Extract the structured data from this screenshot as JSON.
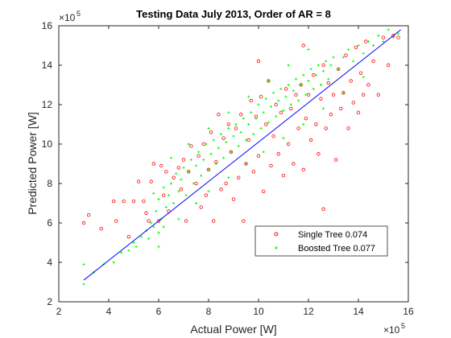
{
  "chart_data": {
    "type": "scatter",
    "title": "Testing Data July 2013, Order of AR = 8",
    "xlabel": "Actual Power [W]",
    "ylabel": "Predicted Power [W]",
    "exponent_label_base": "×10",
    "exponent": "5",
    "xlim": [
      2,
      16
    ],
    "ylim": [
      2,
      16
    ],
    "xticks": [
      "2",
      "4",
      "6",
      "8",
      "10",
      "12",
      "14",
      "16"
    ],
    "yticks": [
      "2",
      "4",
      "6",
      "8",
      "10",
      "12",
      "14",
      "16"
    ],
    "legend_position": "lower-right",
    "series": [
      {
        "name": "Single Tree 0.074",
        "marker": "circle",
        "color": "#ff0000",
        "points": [
          [
            3.0,
            6.0
          ],
          [
            3.2,
            6.4
          ],
          [
            3.7,
            5.7
          ],
          [
            4.2,
            7.1
          ],
          [
            4.3,
            6.1
          ],
          [
            4.6,
            7.1
          ],
          [
            4.8,
            5.3
          ],
          [
            5.0,
            7.1
          ],
          [
            5.2,
            8.1
          ],
          [
            5.4,
            7.1
          ],
          [
            5.5,
            6.5
          ],
          [
            5.6,
            6.1
          ],
          [
            5.7,
            8.1
          ],
          [
            5.8,
            9.0
          ],
          [
            6.0,
            6.1
          ],
          [
            6.1,
            8.9
          ],
          [
            6.2,
            7.4
          ],
          [
            6.3,
            8.6
          ],
          [
            6.4,
            6.6
          ],
          [
            6.6,
            8.3
          ],
          [
            6.8,
            8.8
          ],
          [
            6.9,
            7.7
          ],
          [
            7.0,
            9.2
          ],
          [
            7.1,
            6.1
          ],
          [
            7.2,
            8.6
          ],
          [
            7.3,
            9.9
          ],
          [
            7.5,
            8.0
          ],
          [
            7.6,
            9.4
          ],
          [
            7.7,
            6.8
          ],
          [
            7.8,
            10.0
          ],
          [
            7.9,
            7.4
          ],
          [
            8.0,
            8.7
          ],
          [
            8.1,
            10.6
          ],
          [
            8.2,
            6.1
          ],
          [
            8.3,
            9.1
          ],
          [
            8.4,
            11.5
          ],
          [
            8.5,
            7.7
          ],
          [
            8.6,
            10.3
          ],
          [
            8.7,
            8.0
          ],
          [
            8.8,
            11.0
          ],
          [
            8.9,
            9.6
          ],
          [
            9.0,
            7.2
          ],
          [
            9.1,
            10.8
          ],
          [
            9.2,
            8.3
          ],
          [
            9.3,
            11.5
          ],
          [
            9.4,
            6.1
          ],
          [
            9.5,
            9.0
          ],
          [
            9.6,
            10.2
          ],
          [
            9.7,
            12.2
          ],
          [
            9.8,
            8.6
          ],
          [
            9.9,
            11.4
          ],
          [
            10.0,
            9.4
          ],
          [
            10.1,
            12.4
          ],
          [
            10.2,
            7.6
          ],
          [
            10.3,
            11.0
          ],
          [
            10.4,
            13.2
          ],
          [
            10.5,
            8.9
          ],
          [
            10.6,
            10.4
          ],
          [
            10.7,
            12.0
          ],
          [
            10.8,
            9.5
          ],
          [
            10.9,
            11.6
          ],
          [
            11.0,
            8.4
          ],
          [
            11.1,
            12.8
          ],
          [
            11.2,
            10.0
          ],
          [
            11.3,
            11.8
          ],
          [
            11.4,
            9.0
          ],
          [
            11.5,
            12.5
          ],
          [
            11.6,
            10.8
          ],
          [
            11.7,
            13.0
          ],
          [
            11.8,
            8.7
          ],
          [
            11.9,
            11.3
          ],
          [
            12.0,
            12.5
          ],
          [
            12.1,
            10.2
          ],
          [
            12.2,
            13.5
          ],
          [
            12.3,
            11.0
          ],
          [
            12.4,
            9.5
          ],
          [
            12.5,
            12.3
          ],
          [
            12.6,
            14.0
          ],
          [
            12.7,
            10.8
          ],
          [
            12.8,
            13.1
          ],
          [
            12.9,
            11.5
          ],
          [
            13.0,
            12.5
          ],
          [
            13.1,
            9.2
          ],
          [
            13.2,
            13.8
          ],
          [
            13.3,
            11.8
          ],
          [
            13.4,
            12.6
          ],
          [
            13.5,
            14.5
          ],
          [
            13.6,
            10.8
          ],
          [
            13.7,
            13.2
          ],
          [
            13.8,
            12.1
          ],
          [
            13.9,
            14.9
          ],
          [
            14.0,
            11.6
          ],
          [
            14.1,
            13.6
          ],
          [
            14.2,
            12.5
          ],
          [
            14.3,
            15.2
          ],
          [
            14.4,
            13.0
          ],
          [
            14.6,
            14.2
          ],
          [
            14.8,
            12.5
          ],
          [
            15.0,
            15.4
          ],
          [
            15.2,
            14.0
          ],
          [
            15.4,
            15.5
          ],
          [
            15.6,
            15.4
          ],
          [
            10.0,
            14.2
          ],
          [
            11.8,
            15.0
          ],
          [
            12.6,
            6.7
          ]
        ]
      },
      {
        "name": "Boosted Tree 0.077",
        "marker": "plus",
        "color": "#00ff00",
        "points": [
          [
            3.0,
            3.9
          ],
          [
            3.0,
            2.9
          ],
          [
            3.4,
            3.5
          ],
          [
            3.8,
            3.9
          ],
          [
            4.2,
            4.0
          ],
          [
            4.5,
            4.5
          ],
          [
            4.8,
            4.6
          ],
          [
            5.0,
            5.0
          ],
          [
            5.1,
            4.8
          ],
          [
            5.3,
            5.3
          ],
          [
            5.5,
            5.6
          ],
          [
            5.6,
            5.2
          ],
          [
            5.7,
            6.0
          ],
          [
            5.8,
            5.8
          ],
          [
            5.9,
            6.6
          ],
          [
            6.0,
            5.5
          ],
          [
            6.0,
            7.2
          ],
          [
            6.1,
            6.2
          ],
          [
            6.2,
            7.8
          ],
          [
            6.3,
            6.8
          ],
          [
            6.4,
            7.4
          ],
          [
            6.5,
            8.0
          ],
          [
            6.6,
            7.0
          ],
          [
            6.7,
            8.5
          ],
          [
            6.8,
            7.6
          ],
          [
            6.9,
            8.2
          ],
          [
            7.0,
            8.8
          ],
          [
            7.1,
            7.4
          ],
          [
            7.2,
            8.6
          ],
          [
            7.3,
            9.2
          ],
          [
            7.4,
            8.0
          ],
          [
            7.5,
            8.9
          ],
          [
            7.6,
            9.6
          ],
          [
            7.7,
            8.4
          ],
          [
            7.8,
            9.2
          ],
          [
            7.9,
            10.0
          ],
          [
            8.0,
            8.7
          ],
          [
            8.1,
            9.5
          ],
          [
            8.2,
            10.2
          ],
          [
            8.3,
            9.0
          ],
          [
            8.4,
            9.8
          ],
          [
            8.5,
            10.5
          ],
          [
            8.6,
            9.3
          ],
          [
            8.7,
            10.1
          ],
          [
            8.8,
            10.8
          ],
          [
            8.9,
            9.6
          ],
          [
            9.0,
            10.4
          ],
          [
            9.1,
            11.0
          ],
          [
            9.2,
            9.9
          ],
          [
            9.3,
            10.6
          ],
          [
            9.4,
            11.3
          ],
          [
            9.5,
            10.2
          ],
          [
            9.6,
            11.0
          ],
          [
            9.7,
            11.6
          ],
          [
            9.8,
            10.5
          ],
          [
            9.9,
            11.3
          ],
          [
            10.0,
            12.0
          ],
          [
            10.1,
            10.8
          ],
          [
            10.2,
            11.6
          ],
          [
            10.3,
            12.3
          ],
          [
            10.4,
            11.1
          ],
          [
            10.5,
            11.9
          ],
          [
            10.6,
            12.6
          ],
          [
            10.7,
            11.4
          ],
          [
            10.8,
            12.2
          ],
          [
            10.9,
            12.8
          ],
          [
            11.0,
            11.7
          ],
          [
            11.1,
            12.4
          ],
          [
            11.2,
            13.0
          ],
          [
            11.3,
            12.0
          ],
          [
            11.4,
            12.7
          ],
          [
            11.5,
            13.3
          ],
          [
            11.6,
            12.2
          ],
          [
            11.7,
            13.0
          ],
          [
            11.8,
            13.5
          ],
          [
            11.9,
            12.5
          ],
          [
            12.0,
            13.2
          ],
          [
            12.1,
            13.8
          ],
          [
            12.2,
            12.8
          ],
          [
            12.3,
            13.5
          ],
          [
            12.4,
            14.0
          ],
          [
            12.5,
            13.0
          ],
          [
            12.6,
            13.7
          ],
          [
            12.7,
            14.2
          ],
          [
            12.8,
            13.3
          ],
          [
            12.9,
            14.0
          ],
          [
            13.0,
            14.4
          ],
          [
            13.2,
            13.8
          ],
          [
            13.4,
            14.4
          ],
          [
            13.6,
            14.8
          ],
          [
            13.8,
            14.2
          ],
          [
            14.0,
            15.0
          ],
          [
            14.2,
            14.6
          ],
          [
            14.4,
            15.2
          ],
          [
            14.6,
            15.0
          ],
          [
            14.8,
            15.5
          ],
          [
            15.0,
            15.2
          ],
          [
            15.2,
            15.8
          ],
          [
            15.4,
            15.4
          ],
          [
            15.6,
            15.6
          ],
          [
            6.0,
            4.8
          ],
          [
            6.2,
            5.8
          ],
          [
            6.8,
            6.2
          ],
          [
            7.5,
            7.0
          ],
          [
            8.0,
            7.6
          ],
          [
            8.8,
            8.3
          ],
          [
            9.5,
            9.0
          ],
          [
            10.2,
            9.6
          ],
          [
            11.0,
            10.3
          ],
          [
            11.8,
            11.0
          ],
          [
            12.6,
            11.8
          ],
          [
            13.4,
            12.6
          ],
          [
            14.2,
            13.4
          ],
          [
            5.8,
            7.5
          ],
          [
            6.5,
            9.3
          ],
          [
            7.2,
            10.0
          ],
          [
            8.0,
            10.8
          ],
          [
            8.8,
            11.6
          ],
          [
            9.6,
            12.4
          ],
          [
            10.4,
            13.2
          ],
          [
            11.2,
            14.0
          ],
          [
            12.0,
            14.8
          ]
        ]
      },
      {
        "name": "",
        "marker": "line",
        "color": "#0000ff",
        "points": [
          [
            3.0,
            3.1
          ],
          [
            15.7,
            15.8
          ]
        ]
      }
    ]
  }
}
